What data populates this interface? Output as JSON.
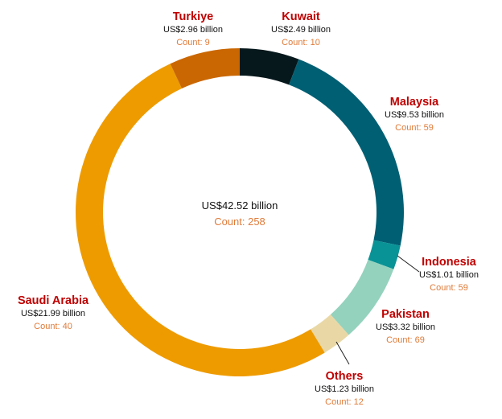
{
  "chart_data": {
    "type": "donut",
    "center_total": "US$42.52 billion",
    "center_count": "Count: 258",
    "slices": [
      {
        "name": "Kuwait",
        "value": 2.49,
        "amount": "US$2.49 billion",
        "count": "Count: 10",
        "color": "#06181c"
      },
      {
        "name": "Malaysia",
        "value": 9.53,
        "amount": "US$9.53 billion",
        "count": "Count: 59",
        "color": "#005f73"
      },
      {
        "name": "Indonesia",
        "value": 1.01,
        "amount": "US$1.01 billion",
        "count": "Count: 59",
        "color": "#0a9396"
      },
      {
        "name": "Pakistan",
        "value": 3.32,
        "amount": "US$3.32 billion",
        "count": "Count: 69",
        "color": "#94d2bd"
      },
      {
        "name": "Others",
        "value": 1.23,
        "amount": "US$1.23 billion",
        "count": "Count: 12",
        "color": "#e9d8a6"
      },
      {
        "name": "Saudi Arabia",
        "value": 21.99,
        "amount": "US$21.99 billion",
        "count": "Count: 40",
        "color": "#ee9b00"
      },
      {
        "name": "Turkiye",
        "value": 2.96,
        "amount": "US$2.96 billion",
        "count": "Count: 9",
        "color": "#ca6702"
      }
    ],
    "name_color": "#c00000",
    "count_color": "#e07b39"
  }
}
